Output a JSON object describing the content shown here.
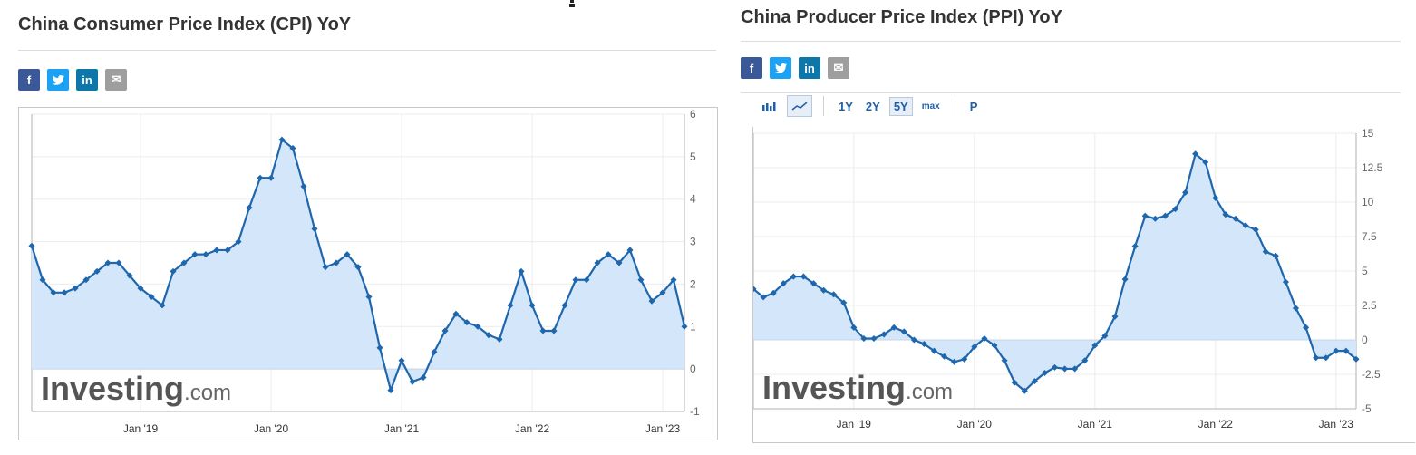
{
  "share": {
    "facebook": {
      "label": "f",
      "color": "#3b5998"
    },
    "twitter": {
      "label": "t",
      "color": "#1da1f2"
    },
    "linkedin": {
      "label": "in",
      "color": "#0e76a8"
    },
    "email": {
      "label": "✉",
      "color": "#9e9e9e"
    }
  },
  "watermark": {
    "main": "Investing",
    "suffix": ".com"
  },
  "colors": {
    "line": "#1f67ad",
    "fill": "#d4e6fa",
    "grid": "#ececec",
    "axis": "#666666"
  },
  "toolbar": {
    "range_buttons": [
      "1Y",
      "2Y",
      "5Y",
      "max"
    ],
    "active": "5Y",
    "p_label": "P"
  },
  "chart_data": [
    {
      "type": "area",
      "title": "China Consumer Price Index (CPI) YoY",
      "xlabel": "",
      "ylabel": "",
      "x_ticks": [
        "Jan '19",
        "Jan '20",
        "Jan '21",
        "Jan '22",
        "Jan '23"
      ],
      "x_start": "2018-03",
      "x_end": "2023-03",
      "ylim": [
        -1,
        6
      ],
      "y_ticks": [
        6,
        5,
        4,
        3,
        2,
        1,
        0,
        -1
      ],
      "y_axis_side": "right",
      "grid": true,
      "baseline": 0,
      "series": [
        {
          "values": [
            2.9,
            2.1,
            1.8,
            1.8,
            1.9,
            2.1,
            2.3,
            2.5,
            2.5,
            2.2,
            1.9,
            1.7,
            1.5,
            2.3,
            2.5,
            2.7,
            2.7,
            2.8,
            2.8,
            3.0,
            3.8,
            4.5,
            4.5,
            5.4,
            5.2,
            4.3,
            3.3,
            2.4,
            2.5,
            2.7,
            2.4,
            1.7,
            0.5,
            -0.5,
            0.2,
            -0.3,
            -0.2,
            0.4,
            0.9,
            1.3,
            1.1,
            1.0,
            0.8,
            0.7,
            1.5,
            2.3,
            1.5,
            0.9,
            0.9,
            1.5,
            2.1,
            2.1,
            2.5,
            2.7,
            2.5,
            2.8,
            2.1,
            1.6,
            1.8,
            2.1,
            1.0
          ]
        }
      ]
    },
    {
      "type": "area",
      "title": "China Producer Price Index (PPI) YoY",
      "xlabel": "",
      "ylabel": "",
      "x_ticks": [
        "Jan '19",
        "Jan '20",
        "Jan '21",
        "Jan '22",
        "Jan '23"
      ],
      "x_start": "2018-03",
      "x_end": "2023-03",
      "ylim": [
        -5,
        15
      ],
      "y_ticks": [
        15,
        12.5,
        10,
        7.5,
        5,
        2.5,
        0,
        -2.5,
        -5
      ],
      "y_axis_side": "right",
      "grid": true,
      "baseline": 0,
      "series": [
        {
          "values": [
            3.7,
            3.1,
            3.4,
            4.1,
            4.6,
            4.6,
            4.1,
            3.6,
            3.3,
            2.7,
            0.9,
            0.1,
            0.1,
            0.4,
            0.9,
            0.6,
            0.0,
            -0.3,
            -0.8,
            -1.2,
            -1.6,
            -1.4,
            -0.5,
            0.1,
            -0.4,
            -1.5,
            -3.1,
            -3.7,
            -3.0,
            -2.4,
            -2.0,
            -2.1,
            -2.1,
            -1.5,
            -0.4,
            0.3,
            1.7,
            4.4,
            6.8,
            9.0,
            8.8,
            9.0,
            9.5,
            10.7,
            13.5,
            12.9,
            10.3,
            9.1,
            8.8,
            8.3,
            8.0,
            6.4,
            6.1,
            4.2,
            2.3,
            0.9,
            -1.3,
            -1.3,
            -0.8,
            -0.8,
            -1.4
          ]
        }
      ]
    }
  ]
}
